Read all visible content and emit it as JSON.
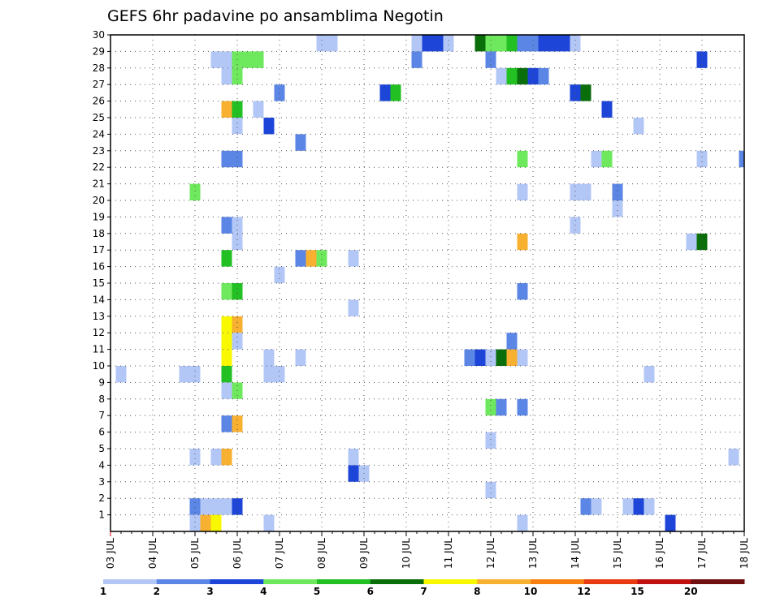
{
  "chart_data": {
    "type": "heatmap",
    "title": "GEFS 6hr padavine po ansamblima Negotin",
    "x_tick_labels": [
      "03 JUL",
      "04 JUL",
      "05 JUL",
      "06 JUL",
      "07 JUL",
      "08 JUL",
      "09 JUL",
      "10 JUL",
      "11 JUL",
      "12 JUL",
      "13 JUL",
      "14 JUL",
      "15 JUL",
      "16 JUL",
      "17 JUL",
      "18 JUL"
    ],
    "x_step_hours": 6,
    "x_range_steps": [
      0,
      60
    ],
    "y_tick_labels": [
      "1",
      "2",
      "3",
      "4",
      "5",
      "6",
      "7",
      "8",
      "9",
      "10",
      "11",
      "12",
      "13",
      "14",
      "15",
      "16",
      "17",
      "18",
      "19",
      "20",
      "21",
      "22",
      "23",
      "24",
      "25",
      "26",
      "27",
      "28",
      "29",
      "30"
    ],
    "y_range": [
      0,
      30
    ],
    "grid": "dotted",
    "colorbar": {
      "labels": [
        "1",
        "2",
        "3",
        "4",
        "5",
        "6",
        "7",
        "8",
        "10",
        "12",
        "15",
        "20"
      ],
      "colors": [
        "#b3c7f7",
        "#5b86e5",
        "#1d46d8",
        "#6ee85c",
        "#22c022",
        "#0a6e0a",
        "#f8f800",
        "#f8b030",
        "#f88010",
        "#e83c10",
        "#c01010",
        "#701010"
      ]
    },
    "cells": [
      [
        20,
        30,
        0
      ],
      [
        21,
        30,
        0
      ],
      [
        29,
        30,
        0
      ],
      [
        29,
        29,
        1
      ],
      [
        30,
        30,
        2
      ],
      [
        31,
        30,
        2
      ],
      [
        32,
        30,
        0
      ],
      [
        35,
        30,
        5
      ],
      [
        36,
        30,
        3
      ],
      [
        37,
        30,
        3
      ],
      [
        38,
        30,
        4
      ],
      [
        39,
        30,
        1
      ],
      [
        40,
        30,
        1
      ],
      [
        41,
        30,
        2
      ],
      [
        42,
        30,
        2
      ],
      [
        43,
        30,
        2
      ],
      [
        44,
        30,
        0
      ],
      [
        10,
        29,
        0
      ],
      [
        11,
        29,
        0
      ],
      [
        12,
        29,
        3
      ],
      [
        13,
        29,
        3
      ],
      [
        14,
        29,
        3
      ],
      [
        36,
        29,
        1
      ],
      [
        56,
        29,
        2
      ],
      [
        11,
        28,
        0
      ],
      [
        12,
        28,
        3
      ],
      [
        37,
        28,
        0
      ],
      [
        38,
        28,
        4
      ],
      [
        39,
        28,
        5
      ],
      [
        40,
        28,
        2
      ],
      [
        41,
        28,
        1
      ],
      [
        16,
        27,
        1
      ],
      [
        26,
        27,
        2
      ],
      [
        27,
        27,
        4
      ],
      [
        44,
        27,
        2
      ],
      [
        45,
        27,
        5
      ],
      [
        11,
        26,
        7
      ],
      [
        12,
        26,
        4
      ],
      [
        14,
        26,
        0
      ],
      [
        47,
        26,
        2
      ],
      [
        12,
        25,
        0
      ],
      [
        15,
        25,
        2
      ],
      [
        50,
        25,
        0
      ],
      [
        18,
        24,
        1
      ],
      [
        11,
        23,
        1
      ],
      [
        12,
        23,
        1
      ],
      [
        39,
        23,
        3
      ],
      [
        46,
        23,
        0
      ],
      [
        47,
        23,
        3
      ],
      [
        56,
        23,
        0
      ],
      [
        60,
        23,
        1
      ],
      [
        8,
        21,
        3
      ],
      [
        39,
        21,
        0
      ],
      [
        44,
        21,
        0
      ],
      [
        45,
        21,
        0
      ],
      [
        48,
        21,
        1
      ],
      [
        48,
        20,
        0
      ],
      [
        11,
        19,
        1
      ],
      [
        12,
        19,
        0
      ],
      [
        44,
        19,
        0
      ],
      [
        12,
        18,
        0
      ],
      [
        39,
        18,
        7
      ],
      [
        55,
        18,
        0
      ],
      [
        56,
        18,
        5
      ],
      [
        11,
        17,
        4
      ],
      [
        18,
        17,
        1
      ],
      [
        19,
        17,
        7
      ],
      [
        20,
        17,
        3
      ],
      [
        23,
        17,
        0
      ],
      [
        16,
        16,
        0
      ],
      [
        11,
        15,
        3
      ],
      [
        12,
        15,
        4
      ],
      [
        39,
        15,
        1
      ],
      [
        23,
        14,
        0
      ],
      [
        11,
        13,
        6
      ],
      [
        12,
        13,
        7
      ],
      [
        11,
        12,
        6
      ],
      [
        12,
        12,
        0
      ],
      [
        38,
        12,
        1
      ],
      [
        11,
        11,
        6
      ],
      [
        15,
        11,
        0
      ],
      [
        18,
        11,
        0
      ],
      [
        34,
        11,
        1
      ],
      [
        35,
        11,
        2
      ],
      [
        36,
        11,
        0
      ],
      [
        37,
        11,
        5
      ],
      [
        38,
        11,
        7
      ],
      [
        39,
        11,
        0
      ],
      [
        1,
        10,
        0
      ],
      [
        7,
        10,
        0
      ],
      [
        8,
        10,
        0
      ],
      [
        11,
        10,
        4
      ],
      [
        15,
        10,
        0
      ],
      [
        16,
        10,
        0
      ],
      [
        51,
        10,
        0
      ],
      [
        11,
        9,
        0
      ],
      [
        12,
        9,
        3
      ],
      [
        36,
        8,
        3
      ],
      [
        37,
        8,
        1
      ],
      [
        39,
        8,
        1
      ],
      [
        11,
        7,
        1
      ],
      [
        12,
        7,
        7
      ],
      [
        36,
        6,
        0
      ],
      [
        8,
        5,
        0
      ],
      [
        10,
        5,
        0
      ],
      [
        11,
        5,
        7
      ],
      [
        23,
        5,
        0
      ],
      [
        59,
        5,
        0
      ],
      [
        23,
        4,
        2
      ],
      [
        24,
        4,
        0
      ],
      [
        36,
        3,
        0
      ],
      [
        8,
        2,
        1
      ],
      [
        9,
        2,
        0
      ],
      [
        10,
        2,
        0
      ],
      [
        11,
        2,
        0
      ],
      [
        12,
        2,
        2
      ],
      [
        45,
        2,
        1
      ],
      [
        46,
        2,
        0
      ],
      [
        49,
        2,
        0
      ],
      [
        50,
        2,
        2
      ],
      [
        51,
        2,
        0
      ],
      [
        8,
        1,
        0
      ],
      [
        9,
        1,
        7
      ],
      [
        10,
        1,
        6
      ],
      [
        15,
        1,
        0
      ],
      [
        39,
        1,
        0
      ],
      [
        53,
        1,
        2
      ]
    ]
  }
}
